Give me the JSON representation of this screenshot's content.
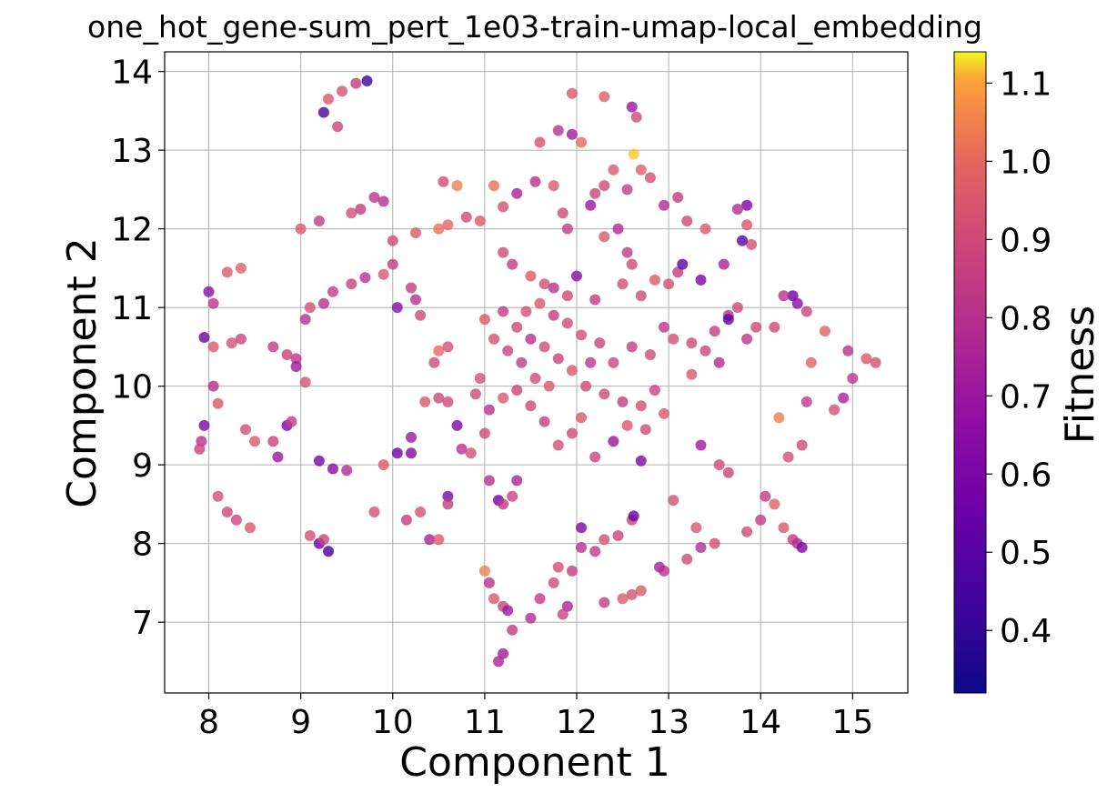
{
  "chart_data": {
    "type": "scatter",
    "title": "one_hot_gene-sum_pert_1e03-train-umap-local_embedding",
    "xlabel": "Component 1",
    "ylabel": "Component 2",
    "xlim": [
      7.52,
      15.6
    ],
    "ylim": [
      6.1,
      14.25
    ],
    "xticks": [
      "8",
      "9",
      "10",
      "11",
      "12",
      "13",
      "14",
      "15"
    ],
    "yticks": [
      "7",
      "8",
      "9",
      "10",
      "11",
      "12",
      "13",
      "14"
    ],
    "grid": true,
    "colorbar": {
      "label": "Fitness",
      "colormap": "plasma",
      "range": [
        0.32,
        1.14
      ],
      "ticks": [
        "0.4",
        "0.5",
        "0.6",
        "0.7",
        "0.8",
        "0.9",
        "1.0",
        "1.1"
      ]
    },
    "points": [
      [
        9.25,
        13.48,
        0.45
      ],
      [
        9.3,
        13.65,
        0.95
      ],
      [
        9.45,
        13.75,
        0.93
      ],
      [
        9.6,
        13.85,
        0.85
      ],
      [
        9.72,
        13.88,
        0.4
      ],
      [
        9.4,
        13.3,
        0.88
      ],
      [
        11.8,
        13.25,
        0.8
      ],
      [
        11.95,
        13.2,
        0.72
      ],
      [
        12.05,
        13.1,
        1.0
      ],
      [
        11.95,
        13.72,
        0.95
      ],
      [
        12.3,
        13.68,
        0.98
      ],
      [
        12.6,
        13.55,
        0.7
      ],
      [
        12.65,
        13.42,
        0.9
      ],
      [
        12.62,
        12.95,
        1.12
      ],
      [
        12.7,
        12.75,
        0.98
      ],
      [
        10.55,
        12.6,
        0.9
      ],
      [
        10.7,
        12.55,
        1.05
      ],
      [
        11.1,
        12.55,
        1.02
      ],
      [
        11.35,
        12.45,
        0.75
      ],
      [
        11.2,
        12.28,
        0.92
      ],
      [
        10.8,
        12.15,
        0.9
      ],
      [
        10.95,
        12.1,
        0.95
      ],
      [
        9.8,
        12.4,
        0.82
      ],
      [
        9.9,
        12.35,
        0.8
      ],
      [
        9.55,
        12.2,
        0.92
      ],
      [
        9.65,
        12.25,
        0.85
      ],
      [
        10.0,
        11.85,
        0.9
      ],
      [
        10.25,
        11.95,
        0.95
      ],
      [
        10.5,
        12.0,
        1.02
      ],
      [
        10.6,
        12.05,
        1.0
      ],
      [
        9.0,
        12.0,
        0.95
      ],
      [
        9.2,
        12.1,
        0.85
      ],
      [
        8.2,
        11.45,
        0.95
      ],
      [
        8.35,
        11.5,
        0.98
      ],
      [
        8.0,
        11.2,
        0.65
      ],
      [
        8.05,
        11.05,
        0.82
      ],
      [
        7.95,
        10.62,
        0.55
      ],
      [
        8.05,
        10.5,
        0.95
      ],
      [
        8.25,
        10.55,
        0.92
      ],
      [
        8.35,
        10.6,
        0.88
      ],
      [
        9.35,
        11.2,
        0.85
      ],
      [
        9.55,
        11.3,
        0.88
      ],
      [
        9.7,
        11.38,
        0.8
      ],
      [
        9.9,
        11.42,
        0.95
      ],
      [
        10.0,
        11.55,
        0.85
      ],
      [
        10.2,
        11.25,
        0.85
      ],
      [
        10.25,
        11.1,
        0.8
      ],
      [
        10.05,
        11.0,
        0.65
      ],
      [
        10.3,
        10.9,
        0.9
      ],
      [
        9.1,
        11.0,
        0.92
      ],
      [
        9.25,
        11.05,
        0.8
      ],
      [
        9.05,
        10.85,
        0.8
      ],
      [
        8.7,
        10.5,
        0.85
      ],
      [
        8.85,
        10.4,
        0.88
      ],
      [
        8.95,
        10.35,
        0.82
      ],
      [
        8.95,
        10.25,
        0.7
      ],
      [
        9.05,
        10.05,
        0.92
      ],
      [
        8.05,
        10.0,
        0.78
      ],
      [
        8.1,
        9.78,
        0.95
      ],
      [
        8.4,
        9.45,
        0.92
      ],
      [
        7.95,
        9.5,
        0.6
      ],
      [
        7.92,
        9.3,
        0.8
      ],
      [
        7.9,
        9.2,
        0.88
      ],
      [
        8.5,
        9.3,
        0.95
      ],
      [
        8.7,
        9.3,
        0.88
      ],
      [
        8.85,
        9.5,
        0.6
      ],
      [
        8.9,
        9.55,
        0.85
      ],
      [
        8.75,
        9.1,
        0.7
      ],
      [
        8.1,
        8.6,
        0.92
      ],
      [
        8.2,
        8.4,
        0.9
      ],
      [
        8.3,
        8.3,
        0.88
      ],
      [
        8.45,
        8.2,
        0.95
      ],
      [
        9.2,
        8.0,
        0.55
      ],
      [
        9.3,
        7.9,
        0.45
      ],
      [
        9.1,
        8.1,
        0.92
      ],
      [
        9.25,
        8.05,
        0.88
      ],
      [
        9.2,
        9.05,
        0.6
      ],
      [
        9.35,
        8.95,
        0.65
      ],
      [
        9.5,
        8.93,
        0.78
      ],
      [
        9.8,
        8.4,
        0.92
      ],
      [
        9.9,
        9.0,
        0.95
      ],
      [
        10.2,
        9.35,
        0.7
      ],
      [
        10.2,
        9.15,
        0.62
      ],
      [
        10.05,
        9.15,
        0.55
      ],
      [
        10.15,
        8.3,
        0.85
      ],
      [
        10.3,
        8.4,
        0.92
      ],
      [
        10.4,
        8.05,
        0.75
      ],
      [
        10.5,
        8.05,
        0.95
      ],
      [
        10.6,
        8.6,
        0.6
      ],
      [
        10.6,
        8.5,
        0.85
      ],
      [
        10.45,
        10.3,
        0.9
      ],
      [
        10.5,
        10.45,
        1.0
      ],
      [
        10.6,
        10.5,
        0.92
      ],
      [
        10.35,
        9.8,
        0.95
      ],
      [
        10.5,
        9.85,
        0.9
      ],
      [
        10.6,
        9.8,
        0.9
      ],
      [
        10.7,
        9.5,
        0.6
      ],
      [
        10.75,
        9.2,
        0.8
      ],
      [
        10.85,
        9.15,
        0.92
      ],
      [
        11.0,
        9.4,
        0.9
      ],
      [
        11.05,
        8.8,
        0.8
      ],
      [
        11.15,
        8.55,
        0.55
      ],
      [
        11.2,
        8.5,
        0.85
      ],
      [
        11.35,
        8.8,
        0.75
      ],
      [
        11.3,
        8.6,
        0.88
      ],
      [
        11.0,
        7.65,
        1.05
      ],
      [
        11.05,
        7.5,
        0.8
      ],
      [
        11.1,
        7.3,
        0.95
      ],
      [
        11.2,
        7.2,
        0.88
      ],
      [
        11.25,
        7.15,
        0.7
      ],
      [
        11.15,
        6.5,
        0.75
      ],
      [
        11.2,
        6.6,
        0.72
      ],
      [
        11.3,
        6.9,
        0.85
      ],
      [
        11.5,
        7.05,
        0.78
      ],
      [
        11.6,
        7.3,
        0.85
      ],
      [
        11.75,
        7.5,
        0.9
      ],
      [
        11.8,
        7.7,
        0.92
      ],
      [
        11.95,
        7.65,
        0.85
      ],
      [
        11.9,
        7.2,
        0.75
      ],
      [
        11.85,
        7.1,
        0.88
      ],
      [
        12.05,
        8.2,
        0.62
      ],
      [
        12.05,
        7.95,
        0.8
      ],
      [
        12.2,
        7.9,
        0.85
      ],
      [
        12.3,
        8.05,
        0.92
      ],
      [
        12.45,
        8.1,
        0.88
      ],
      [
        12.6,
        8.3,
        0.88
      ],
      [
        12.62,
        8.35,
        0.55
      ],
      [
        12.7,
        7.4,
        0.95
      ],
      [
        12.6,
        7.35,
        0.92
      ],
      [
        12.5,
        7.3,
        0.95
      ],
      [
        12.3,
        7.25,
        0.85
      ],
      [
        12.9,
        7.7,
        0.75
      ],
      [
        12.95,
        7.65,
        0.8
      ],
      [
        13.2,
        7.8,
        0.9
      ],
      [
        13.35,
        7.95,
        0.78
      ],
      [
        13.5,
        8.0,
        0.92
      ],
      [
        13.3,
        8.2,
        0.95
      ],
      [
        13.05,
        8.55,
        0.92
      ],
      [
        13.35,
        9.25,
        0.72
      ],
      [
        13.65,
        8.9,
        0.88
      ],
      [
        13.55,
        9.0,
        0.9
      ],
      [
        13.85,
        8.15,
        0.9
      ],
      [
        14.0,
        8.3,
        0.85
      ],
      [
        14.05,
        8.6,
        0.85
      ],
      [
        14.15,
        8.5,
        0.98
      ],
      [
        14.25,
        8.2,
        0.95
      ],
      [
        14.35,
        8.05,
        0.85
      ],
      [
        14.4,
        8.0,
        0.78
      ],
      [
        14.45,
        7.95,
        0.6
      ],
      [
        14.3,
        9.1,
        0.92
      ],
      [
        14.45,
        9.25,
        0.9
      ],
      [
        14.2,
        9.6,
        1.05
      ],
      [
        14.5,
        9.8,
        0.82
      ],
      [
        14.55,
        10.3,
        0.98
      ],
      [
        14.7,
        10.7,
        0.98
      ],
      [
        14.8,
        9.7,
        0.92
      ],
      [
        14.9,
        9.85,
        0.75
      ],
      [
        15.0,
        10.1,
        0.82
      ],
      [
        15.15,
        10.35,
        0.95
      ],
      [
        15.25,
        10.3,
        0.92
      ],
      [
        14.95,
        10.45,
        0.8
      ],
      [
        14.35,
        11.15,
        0.55
      ],
      [
        14.4,
        11.05,
        0.65
      ],
      [
        14.25,
        11.15,
        0.8
      ],
      [
        14.5,
        10.95,
        0.88
      ],
      [
        14.15,
        10.75,
        0.9
      ],
      [
        13.95,
        10.75,
        0.9
      ],
      [
        13.85,
        10.6,
        0.82
      ],
      [
        13.65,
        10.9,
        0.8
      ],
      [
        13.75,
        11.0,
        0.9
      ],
      [
        13.65,
        10.85,
        0.5
      ],
      [
        13.85,
        12.3,
        0.6
      ],
      [
        13.75,
        12.25,
        0.78
      ],
      [
        13.85,
        12.05,
        0.95
      ],
      [
        13.9,
        11.8,
        0.92
      ],
      [
        13.8,
        11.85,
        0.5
      ],
      [
        13.6,
        11.55,
        0.75
      ],
      [
        13.35,
        11.35,
        0.6
      ],
      [
        13.1,
        11.45,
        0.85
      ],
      [
        13.0,
        11.3,
        0.92
      ],
      [
        13.15,
        11.55,
        0.5
      ],
      [
        13.1,
        12.4,
        0.85
      ],
      [
        13.2,
        12.1,
        0.9
      ],
      [
        13.4,
        12.0,
        0.95
      ],
      [
        12.95,
        12.3,
        0.78
      ],
      [
        12.8,
        12.65,
        0.92
      ],
      [
        12.55,
        12.5,
        0.85
      ],
      [
        12.4,
        12.75,
        0.95
      ],
      [
        12.2,
        12.45,
        0.88
      ],
      [
        12.15,
        12.3,
        0.7
      ],
      [
        12.3,
        12.55,
        0.9
      ],
      [
        11.6,
        13.1,
        0.92
      ],
      [
        11.55,
        12.6,
        0.8
      ],
      [
        11.75,
        12.55,
        0.95
      ],
      [
        11.85,
        12.2,
        0.9
      ],
      [
        11.9,
        12.0,
        0.85
      ],
      [
        12.3,
        11.9,
        0.95
      ],
      [
        12.45,
        12.0,
        0.78
      ],
      [
        12.55,
        11.7,
        0.85
      ],
      [
        12.6,
        11.55,
        0.9
      ],
      [
        12.85,
        11.35,
        0.95
      ],
      [
        11.2,
        11.7,
        0.9
      ],
      [
        11.3,
        11.55,
        0.85
      ],
      [
        11.5,
        11.4,
        0.95
      ],
      [
        11.65,
        11.3,
        0.92
      ],
      [
        11.75,
        11.25,
        0.8
      ],
      [
        11.9,
        11.15,
        0.9
      ],
      [
        12.0,
        11.4,
        0.65
      ],
      [
        12.2,
        11.1,
        0.85
      ],
      [
        12.5,
        11.3,
        0.92
      ],
      [
        12.7,
        11.15,
        0.9
      ],
      [
        12.4,
        10.3,
        0.88
      ],
      [
        12.6,
        10.5,
        0.85
      ],
      [
        12.8,
        10.4,
        0.9
      ],
      [
        12.95,
        10.75,
        0.82
      ],
      [
        13.05,
        10.6,
        0.92
      ],
      [
        13.25,
        10.55,
        0.9
      ],
      [
        13.4,
        10.45,
        0.88
      ],
      [
        13.55,
        10.3,
        0.78
      ],
      [
        13.5,
        10.7,
        0.85
      ],
      [
        13.25,
        10.15,
        0.95
      ],
      [
        12.3,
        9.9,
        0.9
      ],
      [
        12.5,
        9.8,
        0.85
      ],
      [
        12.7,
        9.75,
        0.92
      ],
      [
        12.85,
        9.95,
        0.88
      ],
      [
        12.95,
        9.65,
        0.95
      ],
      [
        12.75,
        9.45,
        0.9
      ],
      [
        12.55,
        9.5,
        0.95
      ],
      [
        12.4,
        9.3,
        0.7
      ],
      [
        12.2,
        9.1,
        0.88
      ],
      [
        12.7,
        9.05,
        0.6
      ],
      [
        11.7,
        10.0,
        0.95
      ],
      [
        11.55,
        10.1,
        0.9
      ],
      [
        11.4,
        10.3,
        0.85
      ],
      [
        11.25,
        10.45,
        0.88
      ],
      [
        11.1,
        10.6,
        0.92
      ],
      [
        11.0,
        10.85,
        0.95
      ],
      [
        11.2,
        10.95,
        0.85
      ],
      [
        11.35,
        10.75,
        0.9
      ],
      [
        11.5,
        10.6,
        0.8
      ],
      [
        11.65,
        10.5,
        0.92
      ],
      [
        11.8,
        10.35,
        0.88
      ],
      [
        11.95,
        10.2,
        0.95
      ],
      [
        12.1,
        10.0,
        0.9
      ],
      [
        12.15,
        10.3,
        0.82
      ],
      [
        12.25,
        10.55,
        0.88
      ],
      [
        12.05,
        10.65,
        0.92
      ],
      [
        11.9,
        10.8,
        0.9
      ],
      [
        11.75,
        10.9,
        0.85
      ],
      [
        11.6,
        11.05,
        0.95
      ],
      [
        11.45,
        10.95,
        0.92
      ],
      [
        10.9,
        9.9,
        0.9
      ],
      [
        10.95,
        10.1,
        0.92
      ],
      [
        11.05,
        9.7,
        0.8
      ],
      [
        11.2,
        9.85,
        0.95
      ],
      [
        11.35,
        9.95,
        0.88
      ],
      [
        11.5,
        9.75,
        0.9
      ],
      [
        11.65,
        9.55,
        0.85
      ],
      [
        11.8,
        9.25,
        0.92
      ],
      [
        11.95,
        9.4,
        0.9
      ],
      [
        12.05,
        9.6,
        0.95
      ]
    ]
  }
}
